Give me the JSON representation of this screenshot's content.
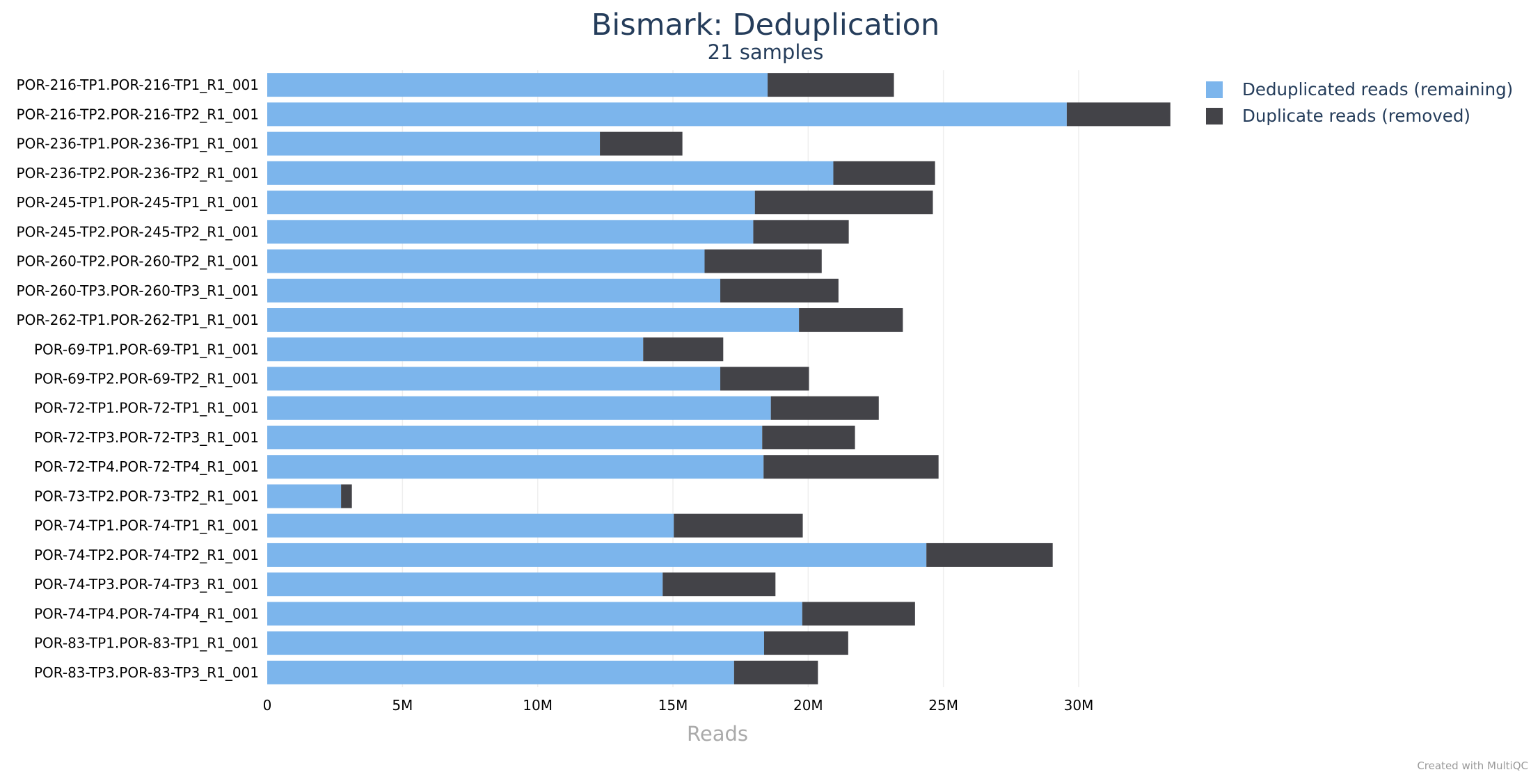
{
  "chart_data": {
    "type": "bar",
    "orientation": "horizontal",
    "stacked": true,
    "title": "Bismark: Deduplication",
    "subtitle": "21 samples",
    "xlabel": "Reads",
    "ylabel": "",
    "xlim": [
      0,
      33500000
    ],
    "x_ticks": [
      0,
      5000000,
      10000000,
      15000000,
      20000000,
      25000000,
      30000000
    ],
    "x_tick_labels": [
      "0",
      "5M",
      "10M",
      "15M",
      "20M",
      "25M",
      "30M"
    ],
    "grid": true,
    "legend_position": "top-right",
    "categories": [
      "POR-216-TP1.POR-216-TP1_R1_001",
      "POR-216-TP2.POR-216-TP2_R1_001",
      "POR-236-TP1.POR-236-TP1_R1_001",
      "POR-236-TP2.POR-236-TP2_R1_001",
      "POR-245-TP1.POR-245-TP1_R1_001",
      "POR-245-TP2.POR-245-TP2_R1_001",
      "POR-260-TP2.POR-260-TP2_R1_001",
      "POR-260-TP3.POR-260-TP3_R1_001",
      "POR-262-TP1.POR-262-TP1_R1_001",
      "POR-69-TP1.POR-69-TP1_R1_001",
      "POR-69-TP2.POR-69-TP2_R1_001",
      "POR-72-TP1.POR-72-TP1_R1_001",
      "POR-72-TP3.POR-72-TP3_R1_001",
      "POR-72-TP4.POR-72-TP4_R1_001",
      "POR-73-TP2.POR-73-TP2_R1_001",
      "POR-74-TP1.POR-74-TP1_R1_001",
      "POR-74-TP2.POR-74-TP2_R1_001",
      "POR-74-TP3.POR-74-TP3_R1_001",
      "POR-74-TP4.POR-74-TP4_R1_001",
      "POR-83-TP1.POR-83-TP1_R1_001",
      "POR-83-TP3.POR-83-TP3_R1_001"
    ],
    "series": [
      {
        "name": "Deduplicated reads (remaining)",
        "color": "#7cb5ec",
        "values": [
          18500000,
          29560000,
          12300000,
          20930000,
          18030000,
          17970000,
          16170000,
          16750000,
          19660000,
          13900000,
          16750000,
          18620000,
          18300000,
          18350000,
          2730000,
          15030000,
          24370000,
          14620000,
          19780000,
          18370000,
          17260000
        ]
      },
      {
        "name": "Duplicate reads (removed)",
        "color": "#434348",
        "values": [
          4670000,
          3830000,
          3050000,
          3760000,
          6580000,
          3530000,
          4330000,
          4370000,
          3840000,
          2960000,
          3280000,
          3990000,
          3430000,
          6470000,
          400000,
          4770000,
          4670000,
          4170000,
          4170000,
          3110000,
          3100000
        ]
      }
    ]
  },
  "footer": {
    "credit": "Created with MultiQC"
  }
}
